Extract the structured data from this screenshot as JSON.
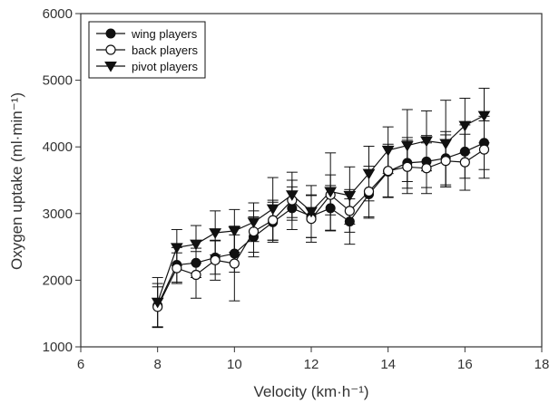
{
  "chart_data": {
    "type": "scatter",
    "title": "",
    "xlabel": "Velocity (km·h⁻¹)",
    "ylabel": "Oxygen uptake (ml·min⁻¹)",
    "xlim": [
      6,
      18
    ],
    "ylim": [
      1000,
      6000
    ],
    "xticks": [
      6,
      8,
      10,
      12,
      14,
      16,
      18
    ],
    "yticks": [
      1000,
      2000,
      3000,
      4000,
      5000,
      6000
    ],
    "grid": false,
    "legend_position": "top-left",
    "x": [
      8,
      8.5,
      9,
      9.5,
      10,
      10.5,
      11,
      11.5,
      12,
      12.5,
      13,
      13.5,
      14,
      14.5,
      15,
      15.5,
      16,
      16.5
    ],
    "series": [
      {
        "name": "wing players",
        "marker": "filled-circle",
        "values": [
          1620,
          2230,
          2260,
          2340,
          2400,
          2650,
          2870,
          3080,
          2960,
          3080,
          2880,
          3290,
          3630,
          3760,
          3780,
          3830,
          3930,
          4060
        ],
        "errors": [
          330,
          260,
          220,
          250,
          280,
          300,
          300,
          320,
          320,
          340,
          340,
          360,
          380,
          380,
          390,
          400,
          400,
          400
        ]
      },
      {
        "name": "back players",
        "marker": "open-circle",
        "values": [
          1600,
          2180,
          2080,
          2300,
          2250,
          2730,
          2900,
          3200,
          2920,
          3280,
          3040,
          3330,
          3640,
          3700,
          3680,
          3790,
          3770,
          3960
        ],
        "errors": [
          300,
          230,
          350,
          300,
          560,
          310,
          300,
          300,
          350,
          300,
          320,
          380,
          400,
          400,
          380,
          390,
          420,
          430
        ]
      },
      {
        "name": "pivot players",
        "marker": "filled-triangle-down",
        "values": [
          1670,
          2490,
          2540,
          2710,
          2740,
          2870,
          3070,
          3280,
          3030,
          3330,
          3270,
          3600,
          3950,
          4020,
          4090,
          4050,
          4320,
          4470
        ]
      }
    ],
    "pivot_errors": [
      370,
      270,
      280,
      330,
      320,
      290,
      470,
      340,
      390,
      580,
      430,
      410,
      350,
      540,
      450,
      650,
      410,
      410
    ],
    "colors": {
      "axis": "#333333",
      "marker": "#111111",
      "marker_open_fill": "#ffffff",
      "background": "#ffffff"
    }
  }
}
